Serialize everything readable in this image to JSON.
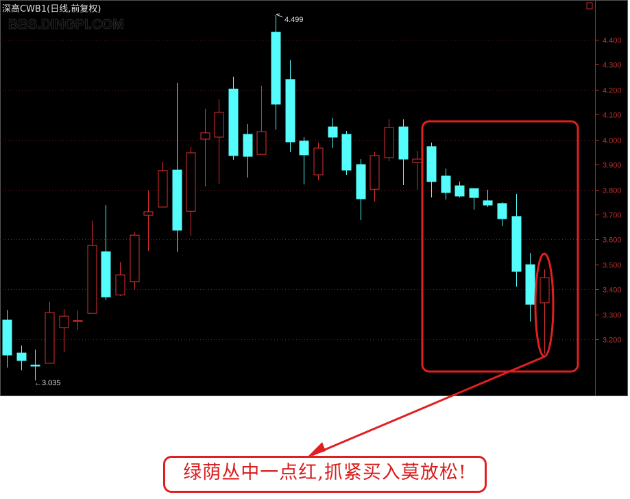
{
  "header": {
    "title": "深高CWB1(日线,前复权)",
    "watermark": "BBS.DINGPI.COM"
  },
  "annotation": {
    "callout_text": "绿荫丛中一点红,抓紧买入莫放松!",
    "max_label": "4.499",
    "min_label": "←3.035"
  },
  "colors": {
    "background": "#000000",
    "up": "#e03030",
    "down": "#54fcfc",
    "axis": "#c03030",
    "annotation": "#e02020"
  },
  "chart_data": {
    "type": "candlestick",
    "title": "深高CWB1(日线,前复权)",
    "ylim": [
      3.0,
      4.5
    ],
    "y_ticks": [
      "4.400",
      "4.300",
      "4.200",
      "4.100",
      "4.000",
      "3.900",
      "3.800",
      "3.700",
      "3.600",
      "3.500",
      "3.400",
      "3.300",
      "3.200"
    ],
    "grid": true,
    "max_marker": 4.499,
    "min_marker": 3.035,
    "candles": [
      {
        "o": 3.277,
        "h": 3.318,
        "l": 3.087,
        "c": 3.137
      },
      {
        "o": 3.145,
        "h": 3.175,
        "l": 3.076,
        "c": 3.115
      },
      {
        "o": 3.097,
        "h": 3.159,
        "l": 3.035,
        "c": 3.096
      },
      {
        "o": 3.104,
        "h": 3.351,
        "l": 3.104,
        "c": 3.307
      },
      {
        "o": 3.247,
        "h": 3.321,
        "l": 3.148,
        "c": 3.293
      },
      {
        "o": 3.271,
        "h": 3.315,
        "l": 3.238,
        "c": 3.275
      },
      {
        "o": 3.304,
        "h": 3.675,
        "l": 3.304,
        "c": 3.576
      },
      {
        "o": 3.551,
        "h": 3.738,
        "l": 3.357,
        "c": 3.37
      },
      {
        "o": 3.378,
        "h": 3.51,
        "l": 3.373,
        "c": 3.458
      },
      {
        "o": 3.431,
        "h": 3.628,
        "l": 3.398,
        "c": 3.617
      },
      {
        "o": 3.697,
        "h": 3.796,
        "l": 3.554,
        "c": 3.711
      },
      {
        "o": 3.73,
        "h": 3.911,
        "l": 3.728,
        "c": 3.876
      },
      {
        "o": 3.878,
        "h": 4.227,
        "l": 3.551,
        "c": 3.637
      },
      {
        "o": 3.713,
        "h": 3.972,
        "l": 3.615,
        "c": 3.947
      },
      {
        "o": 4.002,
        "h": 4.123,
        "l": 3.812,
        "c": 4.027
      },
      {
        "o": 4.01,
        "h": 4.161,
        "l": 3.823,
        "c": 4.109
      },
      {
        "o": 4.202,
        "h": 4.252,
        "l": 3.919,
        "c": 3.936
      },
      {
        "o": 4.021,
        "h": 4.062,
        "l": 3.848,
        "c": 3.933
      },
      {
        "o": 3.941,
        "h": 4.216,
        "l": 3.941,
        "c": 4.032
      },
      {
        "o": 4.43,
        "h": 4.499,
        "l": 4.04,
        "c": 4.142
      },
      {
        "o": 4.241,
        "h": 4.318,
        "l": 3.95,
        "c": 3.991
      },
      {
        "o": 3.994,
        "h": 4.01,
        "l": 3.821,
        "c": 3.939
      },
      {
        "o": 3.859,
        "h": 3.988,
        "l": 3.837,
        "c": 3.966
      },
      {
        "o": 4.051,
        "h": 4.087,
        "l": 3.966,
        "c": 4.01
      },
      {
        "o": 4.021,
        "h": 4.035,
        "l": 3.859,
        "c": 3.878
      },
      {
        "o": 3.9,
        "h": 3.922,
        "l": 3.678,
        "c": 3.763
      },
      {
        "o": 3.801,
        "h": 3.95,
        "l": 3.752,
        "c": 3.936
      },
      {
        "o": 3.928,
        "h": 4.081,
        "l": 3.914,
        "c": 4.049
      },
      {
        "o": 4.051,
        "h": 4.081,
        "l": 3.818,
        "c": 3.922
      },
      {
        "o": 3.908,
        "h": 3.955,
        "l": 3.799,
        "c": 3.922
      },
      {
        "o": 3.972,
        "h": 3.988,
        "l": 3.768,
        "c": 3.832
      },
      {
        "o": 3.854,
        "h": 3.884,
        "l": 3.76,
        "c": 3.788
      },
      {
        "o": 3.815,
        "h": 3.832,
        "l": 3.768,
        "c": 3.774
      },
      {
        "o": 3.804,
        "h": 3.804,
        "l": 3.719,
        "c": 3.768
      },
      {
        "o": 3.755,
        "h": 3.799,
        "l": 3.73,
        "c": 3.738
      },
      {
        "o": 3.744,
        "h": 3.749,
        "l": 3.653,
        "c": 3.683
      },
      {
        "o": 3.692,
        "h": 3.782,
        "l": 3.411,
        "c": 3.472
      },
      {
        "o": 3.499,
        "h": 3.546,
        "l": 3.271,
        "c": 3.34
      },
      {
        "o": 3.346,
        "h": 3.48,
        "l": 3.142,
        "c": 3.447
      }
    ]
  }
}
